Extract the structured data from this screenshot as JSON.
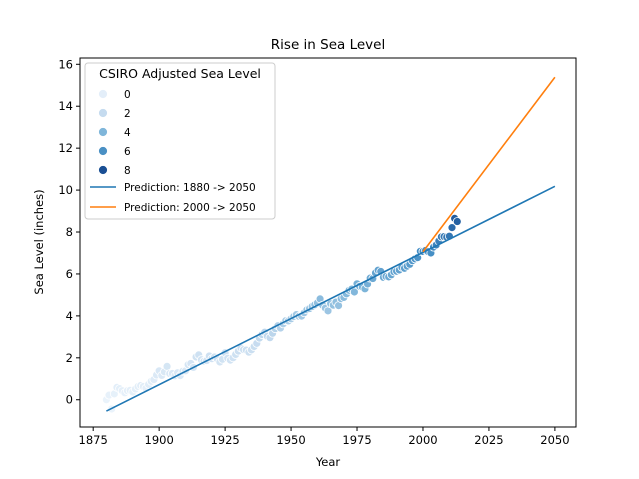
{
  "chart_data": {
    "type": "scatter",
    "title": "Rise in Sea Level",
    "xlabel": "Year",
    "ylabel": "Sea Level (inches)",
    "xlim": [
      1870,
      2058
    ],
    "ylim": [
      -1.3,
      16.3
    ],
    "xticks": [
      1875,
      1900,
      1925,
      1950,
      1975,
      2000,
      2025,
      2050
    ],
    "yticks": [
      0,
      2,
      4,
      6,
      8,
      10,
      12,
      14,
      16
    ],
    "grid": false,
    "legend": {
      "title": "CSIRO Adjusted Sea Level",
      "placement": "top-left",
      "hue_entries": [
        {
          "label": "0",
          "value": 0,
          "color": "#e3eef9"
        },
        {
          "label": "2",
          "value": 2,
          "color": "#c5dbef"
        },
        {
          "label": "4",
          "value": 4,
          "color": "#7fb6da"
        },
        {
          "label": "6",
          "value": 6,
          "color": "#4a90c4"
        },
        {
          "label": "8",
          "value": 8,
          "color": "#1a4f94"
        }
      ]
    },
    "hue_range": [
      0,
      9.5
    ],
    "points": {
      "x": [
        1880,
        1881,
        1882,
        1883,
        1884,
        1885,
        1886,
        1887,
        1888,
        1889,
        1890,
        1891,
        1892,
        1893,
        1894,
        1895,
        1896,
        1897,
        1898,
        1899,
        1900,
        1901,
        1902,
        1903,
        1904,
        1905,
        1906,
        1907,
        1908,
        1909,
        1910,
        1911,
        1912,
        1913,
        1914,
        1915,
        1916,
        1917,
        1918,
        1919,
        1920,
        1921,
        1922,
        1923,
        1924,
        1925,
        1926,
        1927,
        1928,
        1929,
        1930,
        1931,
        1932,
        1933,
        1934,
        1935,
        1936,
        1937,
        1938,
        1939,
        1940,
        1941,
        1942,
        1943,
        1944,
        1945,
        1946,
        1947,
        1948,
        1949,
        1950,
        1951,
        1952,
        1953,
        1954,
        1955,
        1956,
        1957,
        1958,
        1959,
        1960,
        1961,
        1962,
        1963,
        1964,
        1965,
        1966,
        1967,
        1968,
        1969,
        1970,
        1971,
        1972,
        1973,
        1974,
        1975,
        1976,
        1977,
        1978,
        1979,
        1980,
        1981,
        1982,
        1983,
        1984,
        1985,
        1986,
        1987,
        1988,
        1989,
        1990,
        1991,
        1992,
        1993,
        1994,
        1995,
        1996,
        1997,
        1998,
        1999,
        2000,
        2001,
        2002,
        2003,
        2004,
        2005,
        2006,
        2007,
        2008,
        2009,
        2010,
        2011,
        2012,
        2013
      ],
      "y": [
        0.0,
        0.22,
        -0.44,
        0.28,
        0.59,
        0.53,
        0.43,
        0.33,
        0.43,
        0.45,
        0.37,
        0.51,
        0.63,
        0.68,
        0.63,
        0.55,
        0.73,
        0.88,
        0.96,
        1.18,
        1.38,
        1.16,
        1.33,
        1.59,
        1.25,
        1.25,
        1.14,
        1.29,
        1.15,
        1.36,
        1.38,
        1.67,
        1.73,
        1.54,
        2.04,
        2.14,
        1.91,
        1.84,
        1.87,
        2.09,
        1.96,
        2.04,
        1.96,
        1.8,
        1.93,
        2.24,
        1.98,
        1.89,
        2.0,
        2.16,
        2.32,
        2.47,
        2.39,
        2.37,
        2.27,
        2.38,
        2.54,
        2.69,
        2.94,
        3.11,
        3.22,
        3.03,
        2.96,
        3.17,
        3.39,
        3.53,
        3.42,
        3.62,
        3.77,
        3.76,
        3.86,
        3.97,
        4.06,
        3.98,
        3.99,
        4.15,
        4.29,
        4.35,
        4.45,
        4.53,
        4.62,
        4.81,
        4.51,
        4.37,
        4.24,
        4.58,
        4.51,
        4.66,
        4.49,
        4.82,
        4.88,
        5.05,
        5.22,
        5.28,
        5.14,
        5.53,
        5.41,
        5.38,
        5.29,
        5.52,
        5.8,
        5.78,
        6.05,
        6.18,
        6.12,
        5.84,
        5.88,
        5.86,
        5.96,
        6.1,
        6.13,
        6.19,
        6.32,
        6.27,
        6.37,
        6.46,
        6.63,
        6.72,
        6.78,
        7.08,
        7.07,
        7.12,
        7.06,
        7.0,
        7.28,
        7.38,
        7.57,
        7.77,
        7.78,
        7.76,
        7.8,
        8.21,
        8.65,
        8.5
      ],
      "series_color_note": ""
    },
    "series": [
      {
        "name": "Prediction: 1880 -> 2050",
        "color": "#1f77b4",
        "x": [
          1880,
          2050
        ],
        "y": [
          -0.54,
          10.18
        ]
      },
      {
        "name": "Prediction: 2000 -> 2050",
        "color": "#ff7f0e",
        "x": [
          2000,
          2050
        ],
        "y": [
          7.06,
          15.38
        ]
      }
    ]
  }
}
